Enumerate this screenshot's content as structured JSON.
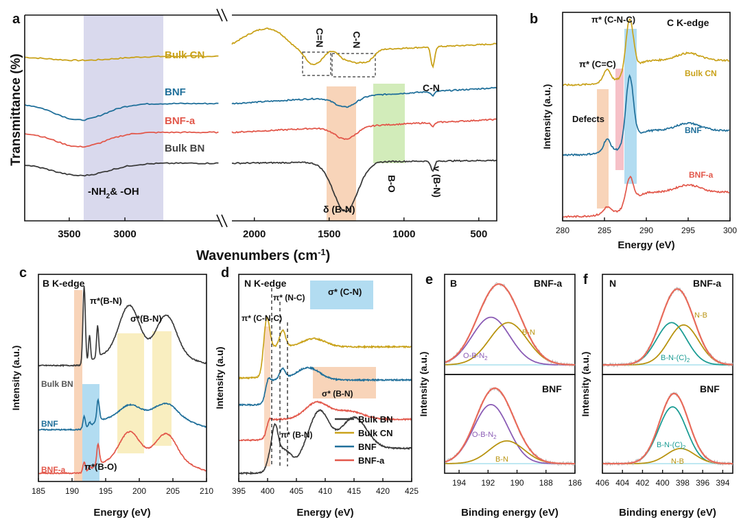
{
  "colors": {
    "bulk_bn": "#3a3a3a",
    "bulk_cn": "#c9a21a",
    "bnf": "#1f6f9a",
    "bnf_a": "#e2574a",
    "purple": "#8a5bb5",
    "teal": "#1b9c94",
    "olive": "#b8930f",
    "hl_blue": "#9fd3ee",
    "hl_pink": "#f2a6b0",
    "hl_green": "#b4e08c",
    "hl_orange": "#f6c9a8",
    "hl_yellow": "#f7eab0",
    "hl_lavender": "#c9c9e6"
  },
  "panels": {
    "a": "a",
    "b": "b",
    "c": "c",
    "d": "d",
    "e": "e",
    "f": "f"
  },
  "chart_data": [
    {
      "id": "a",
      "type": "line",
      "xlabel": "Wavenumbers (cm-1)",
      "ylabel": "Transmittance (%)",
      "xlim_left": [
        3900,
        2150
      ],
      "xlim_right": [
        2150,
        380
      ],
      "xticks": [
        3500,
        3000,
        2000,
        1500,
        1000,
        500
      ],
      "xtick_labels": [
        "3500",
        "3000",
        "2000",
        "1500",
        "1000",
        "500"
      ],
      "series": [
        {
          "name": "Bulk CN",
          "key": "bulk_cn",
          "offset": 0.8,
          "dips": [
            [
              3400,
              0.02,
              300
            ],
            [
              1620,
              0.05,
              40
            ],
            [
              1560,
              0.04,
              40
            ],
            [
              1400,
              0.04,
              40
            ],
            [
              1320,
              0.05,
              40
            ],
            [
              1240,
              0.05,
              40
            ],
            [
              808,
              0.1,
              12
            ]
          ],
          "rise": 0.5,
          "style": "cn"
        },
        {
          "name": "BNF",
          "key": "bnf",
          "offset": 0.57,
          "dips": [
            [
              3400,
              0.08,
              220
            ],
            [
              1390,
              0.05,
              70
            ],
            [
              808,
              0.02,
              12
            ]
          ],
          "rise": 0.22
        },
        {
          "name": "BNF-a",
          "key": "bnf_a",
          "offset": 0.43,
          "dips": [
            [
              3400,
              0.07,
              220
            ],
            [
              1390,
              0.06,
              70
            ],
            [
              808,
              0.02,
              12
            ]
          ],
          "rise": 0.18
        },
        {
          "name": "Bulk BN",
          "key": "bulk_bn",
          "offset": 0.28,
          "dips": [
            [
              3400,
              0.06,
              250
            ],
            [
              1390,
              0.24,
              80
            ],
            [
              808,
              0.05,
              12
            ]
          ],
          "rise": 0.04
        }
      ],
      "annotations": [
        "C=N",
        "C-N",
        "C-N",
        "δ (B-N)",
        "B-O",
        "v (B-N)"
      ],
      "nh_label": "-NH",
      "nh_sub": "2",
      "nh_suffix": "& -OH"
    },
    {
      "id": "b",
      "type": "line",
      "xlabel": "Energy (eV)",
      "ylabel": "Intensity (a.u.)",
      "xlim": [
        280,
        300
      ],
      "xticks": [
        280,
        285,
        290,
        295,
        300
      ],
      "xtick_labels": [
        "280",
        "285",
        "290",
        "295",
        "300"
      ],
      "edge_label": "C K-edge",
      "series": [
        {
          "name": "Bulk CN",
          "key": "bulk_cn",
          "offset": 0.66,
          "main": 0.27,
          "shoulder": 0.06
        },
        {
          "name": "BNF",
          "key": "bnf",
          "offset": 0.32,
          "main": 0.33,
          "shoulder": 0.06
        },
        {
          "name": "BNF-a",
          "key": "bnf_a",
          "offset": 0.02,
          "main": 0.14,
          "shoulder": 0.03
        }
      ],
      "annotations": [
        "π* (C-N-C)",
        "π* (C=C)",
        "Defects"
      ]
    },
    {
      "id": "c",
      "type": "line",
      "xlabel": "Energy (eV)",
      "ylabel": "Intensity (a.u.)",
      "xlim": [
        185,
        210
      ],
      "xticks": [
        185,
        190,
        195,
        200,
        205,
        210
      ],
      "xtick_labels": [
        "185",
        "190",
        "195",
        "200",
        "205",
        "210"
      ],
      "edge_label": "B K-edge",
      "series": [
        {
          "name": "Bulk BN",
          "key": "bulk_bn",
          "offset": 0.56,
          "pi": 0.38,
          "sigma": 0.24
        },
        {
          "name": "BNF",
          "key": "bnf",
          "offset": 0.25,
          "pi": 0.06,
          "sigma": 0.06
        },
        {
          "name": "BNF-a",
          "key": "bnf_a",
          "offset": 0.04,
          "pi": 0.05,
          "sigma": 0.14
        }
      ],
      "annotations": [
        "π*(B-N)",
        "σ*(B-N)",
        "π*(B-O)"
      ]
    },
    {
      "id": "d",
      "type": "line",
      "xlabel": "Energy (eV)",
      "ylabel": "Intensity (a.u)",
      "xlim": [
        395,
        425
      ],
      "xticks": [
        395,
        400,
        405,
        410,
        415,
        420,
        425
      ],
      "xtick_labels": [
        "395",
        "400",
        "405",
        "410",
        "415",
        "420",
        "425"
      ],
      "edge_label": "N K-edge",
      "series": [
        {
          "name": "Bulk BN",
          "key": "bulk_bn",
          "offset": 0.04
        },
        {
          "name": "Bulk CN",
          "key": "bulk_cn",
          "offset": 0.5
        },
        {
          "name": "BNF",
          "key": "bnf",
          "offset": 0.37
        },
        {
          "name": "BNF-a",
          "key": "bnf_a",
          "offset": 0.2
        }
      ],
      "legend": [
        "Bulk BN",
        "Bulk CN",
        "BNF",
        "BNF-a"
      ],
      "annotations": [
        "σ* (C-N)",
        "π* (N-C)",
        "π* (C-N-C)",
        "σ* (B-N)",
        "π* (B-N)"
      ]
    },
    {
      "id": "e",
      "type": "line",
      "xlabel": "Binding energy (eV)",
      "ylabel": "Intensity (a.u.)",
      "xlim": [
        195,
        186
      ],
      "xticks": [
        194,
        192,
        190,
        188,
        186
      ],
      "xtick_labels": [
        "194",
        "192",
        "190",
        "188",
        "186"
      ],
      "element": "B",
      "top": {
        "label": "BNF-a",
        "peaks": [
          {
            "name": "O-B-N2",
            "key": "purple",
            "center": 191.8,
            "amp": 0.62,
            "width": 1.3
          },
          {
            "name": "B-N",
            "key": "olive",
            "center": 190.6,
            "amp": 0.55,
            "width": 1.3
          }
        ]
      },
      "bottom": {
        "label": "BNF",
        "peaks": [
          {
            "name": "O-B-N2",
            "key": "purple",
            "center": 191.8,
            "amp": 0.78,
            "width": 1.2
          },
          {
            "name": "B-N",
            "key": "olive",
            "center": 190.7,
            "amp": 0.3,
            "width": 1.2
          }
        ]
      },
      "labels": {
        "obn_top": "O-B-N",
        "obn_top_sub": "2",
        "bn_top": "B-N",
        "obn_bot": "O-B-N",
        "obn_bot_sub": "2",
        "bn_bot": "B-N"
      }
    },
    {
      "id": "f",
      "type": "line",
      "xlabel": "Binding energy (eV)",
      "ylabel": "Intensity (a.u.)",
      "xlim": [
        406,
        393
      ],
      "xticks": [
        406,
        404,
        402,
        400,
        398,
        396,
        394
      ],
      "xtick_labels": [
        "406",
        "404",
        "402",
        "400",
        "398",
        "396",
        "394"
      ],
      "element": "N",
      "top": {
        "label": "BNF-a",
        "peaks": [
          {
            "name": "B-N-(C)2",
            "key": "teal",
            "center": 399.1,
            "amp": 0.55,
            "width": 1.5
          },
          {
            "name": "N-B",
            "key": "olive",
            "center": 397.9,
            "amp": 0.52,
            "width": 1.5
          }
        ]
      },
      "bottom": {
        "label": "BNF",
        "peaks": [
          {
            "name": "B-N-(C)2",
            "key": "teal",
            "center": 399.0,
            "amp": 0.75,
            "width": 1.4
          },
          {
            "name": "N-B",
            "key": "olive",
            "center": 398.2,
            "amp": 0.2,
            "width": 1.4
          }
        ]
      },
      "labels": {
        "nb_top": "N-B",
        "bnc_top": "B-N-(C)",
        "bnc_top_sub": "2",
        "bnc_bot": "B-N-(C)",
        "bnc_bot_sub": "2",
        "nb_bot": "N-B"
      }
    }
  ]
}
